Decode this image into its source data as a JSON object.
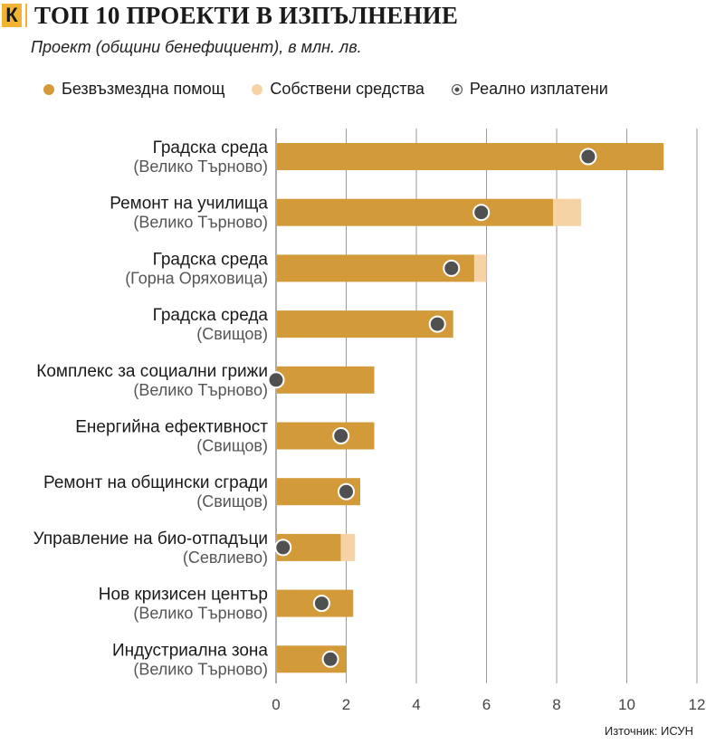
{
  "header": {
    "logo": "К",
    "title": "ТОП 10 ПРОЕКТИ В ИЗПЪЛНЕНИЕ",
    "subtitle": "Проект (общини бенефициент), в млн. лв."
  },
  "legend": [
    {
      "label": "Безвъзмездна помощ",
      "color": "#d39a3a",
      "style": "filled"
    },
    {
      "label": "Собствени средства",
      "color": "#f5d3a4",
      "style": "filled"
    },
    {
      "label": "Реално изплатени",
      "color": "#505050",
      "style": "ring"
    }
  ],
  "source": "Източник: ИСУН",
  "chart_data": {
    "type": "bar",
    "orientation": "horizontal",
    "stacked": true,
    "xlim": [
      0,
      12
    ],
    "xticks": [
      "0",
      "2",
      "4",
      "6",
      "8",
      "10",
      "12"
    ],
    "grid": true,
    "categories": [
      {
        "name": "Градска среда",
        "location": "(Велико Търново)"
      },
      {
        "name": "Ремонт на училища",
        "location": "(Велико Търново)"
      },
      {
        "name": "Градска среда",
        "location": "(Горна Оряховица)"
      },
      {
        "name": "Градска среда",
        "location": "(Свищов)"
      },
      {
        "name": "Комплекс за социални грижи",
        "location": "(Велико Търново)"
      },
      {
        "name": "Енергийна ефективност",
        "location": "(Свищов)"
      },
      {
        "name": "Ремонт на общински сгради",
        "location": "(Свищов)"
      },
      {
        "name": "Управление на био-отпадъци",
        "location": "(Севлиево)"
      },
      {
        "name": "Нов кризисен център",
        "location": "(Велико Търново)"
      },
      {
        "name": "Индустриална зона",
        "location": "(Велико Търново)"
      }
    ],
    "series": [
      {
        "name": "Безвъзмездна помощ",
        "color": "#d39a3a",
        "values": [
          11.05,
          7.9,
          5.65,
          5.05,
          2.8,
          2.8,
          2.4,
          1.85,
          2.2,
          2.0
        ]
      },
      {
        "name": "Собствени средства",
        "color": "#f5d3a4",
        "values": [
          0,
          0.8,
          0.35,
          0,
          0,
          0,
          0,
          0.4,
          0,
          0
        ]
      },
      {
        "name": "Реално изплатени",
        "color": "#505050",
        "type": "point",
        "values": [
          8.9,
          5.85,
          5.0,
          4.6,
          0.0,
          1.85,
          2.0,
          0.2,
          1.3,
          1.55
        ]
      }
    ]
  }
}
